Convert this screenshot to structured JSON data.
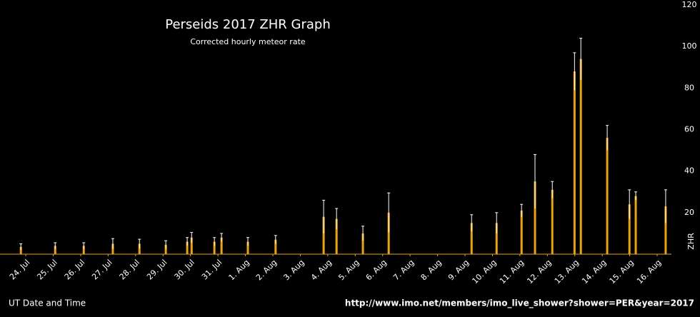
{
  "chart_data": {
    "type": "bar",
    "title": "Perseids 2017 ZHR Graph",
    "subtitle": "Corrected hourly meteor rate",
    "xlabel": "UT Date and Time",
    "ylabel": "ZHR",
    "source": "http://www.imo.net/members/imo_live_shower?shower=PER&year=2017",
    "color": "#e8a317",
    "error_color": "#ffffff",
    "x": [
      -0.18,
      1.07,
      2.11,
      3.17,
      4.14,
      5.1,
      5.88,
      6.04,
      6.87,
      7.13,
      8.09,
      9.1,
      10.85,
      11.32,
      12.28,
      13.22,
      16.24,
      17.15,
      18.06,
      18.55,
      19.18,
      19.99,
      20.22,
      21.18,
      21.99,
      22.22,
      23.31
    ],
    "values": [
      3.5,
      4,
      4,
      5,
      5,
      4.5,
      6,
      8,
      6,
      8,
      6,
      7,
      18,
      17,
      10,
      20,
      15,
      15,
      21,
      35,
      31,
      88,
      94,
      56,
      24,
      28,
      23
    ],
    "errors": [
      1.5,
      1.5,
      1.5,
      2.5,
      2.2,
      2,
      2,
      2.5,
      2,
      2,
      2,
      2,
      8,
      5,
      3.5,
      9.5,
      4,
      5,
      3,
      13,
      4,
      9,
      10,
      6,
      7,
      2,
      8
    ],
    "xlim": [
      -0.94,
      23.78
    ],
    "xticks": [
      {
        "value": 0,
        "label": "24. Jul"
      },
      {
        "value": 1,
        "label": "25. Jul"
      },
      {
        "value": 2,
        "label": "26. Jul"
      },
      {
        "value": 3,
        "label": "27. Jul"
      },
      {
        "value": 4,
        "label": "28. Jul"
      },
      {
        "value": 5,
        "label": "29. Jul"
      },
      {
        "value": 6,
        "label": "30. Jul"
      },
      {
        "value": 7,
        "label": "31. Jul"
      },
      {
        "value": 8,
        "label": "1. Aug"
      },
      {
        "value": 9,
        "label": "2. Aug"
      },
      {
        "value": 10,
        "label": "3. Aug"
      },
      {
        "value": 11,
        "label": "4. Aug"
      },
      {
        "value": 12,
        "label": "5. Aug"
      },
      {
        "value": 13,
        "label": "6. Aug"
      },
      {
        "value": 14,
        "label": "7. Aug"
      },
      {
        "value": 15,
        "label": "8. Aug"
      },
      {
        "value": 16,
        "label": "9. Aug"
      },
      {
        "value": 17,
        "label": "10. Aug"
      },
      {
        "value": 18,
        "label": "11. Aug"
      },
      {
        "value": 19,
        "label": "12. Aug"
      },
      {
        "value": 20,
        "label": "13. Aug"
      },
      {
        "value": 21,
        "label": "14. Aug"
      },
      {
        "value": 22,
        "label": "15. Aug"
      },
      {
        "value": 23,
        "label": "16. Aug"
      }
    ],
    "ylim": [
      0,
      120
    ],
    "yticks": [
      20,
      40,
      60,
      80,
      100,
      120
    ]
  }
}
